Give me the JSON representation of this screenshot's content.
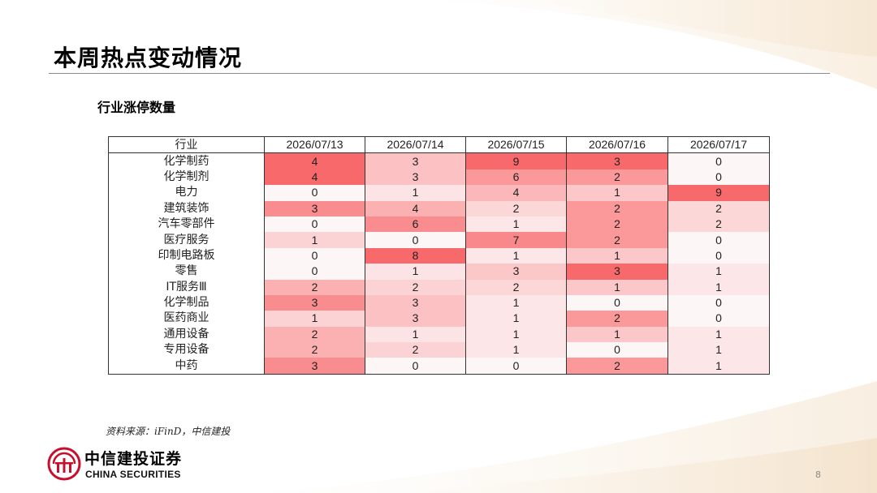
{
  "page": {
    "title": "本周热点变动情况",
    "subtitle": "行业涨停数量",
    "source": "资料来源：iFinD，中信建投",
    "page_number": "8"
  },
  "logo": {
    "cn": "中信建投证券",
    "en": "CHINA SECURITIES",
    "color": "#c8102e"
  },
  "table": {
    "header_label": "行业",
    "columns": [
      "2026/07/13",
      "2026/07/14",
      "2026/07/15",
      "2026/07/16",
      "2026/07/17"
    ],
    "column_max": [
      4,
      8,
      9,
      3,
      9
    ],
    "rows": [
      {
        "label": "化学制药",
        "values": [
          4,
          3,
          9,
          3,
          0
        ]
      },
      {
        "label": "化学制剂",
        "values": [
          4,
          3,
          6,
          2,
          0
        ]
      },
      {
        "label": "电力",
        "values": [
          0,
          1,
          4,
          1,
          9
        ]
      },
      {
        "label": "建筑装饰",
        "values": [
          3,
          4,
          2,
          2,
          2
        ]
      },
      {
        "label": "汽车零部件",
        "values": [
          0,
          6,
          1,
          2,
          2
        ]
      },
      {
        "label": "医疗服务",
        "values": [
          1,
          0,
          7,
          2,
          0
        ]
      },
      {
        "label": "印制电路板",
        "values": [
          0,
          8,
          1,
          1,
          0
        ]
      },
      {
        "label": "零售",
        "values": [
          0,
          1,
          3,
          3,
          1
        ]
      },
      {
        "label": "IT服务Ⅲ",
        "values": [
          2,
          2,
          2,
          1,
          1
        ]
      },
      {
        "label": "化学制品",
        "values": [
          3,
          3,
          1,
          0,
          0
        ]
      },
      {
        "label": "医药商业",
        "values": [
          1,
          3,
          1,
          2,
          0
        ]
      },
      {
        "label": "通用设备",
        "values": [
          2,
          1,
          1,
          1,
          1
        ]
      },
      {
        "label": "专用设备",
        "values": [
          2,
          2,
          1,
          0,
          1
        ]
      },
      {
        "label": "中药",
        "values": [
          3,
          0,
          0,
          2,
          1
        ]
      }
    ],
    "heat_low_color": "#fdf6f7",
    "heat_high_color": "#f8696b"
  }
}
